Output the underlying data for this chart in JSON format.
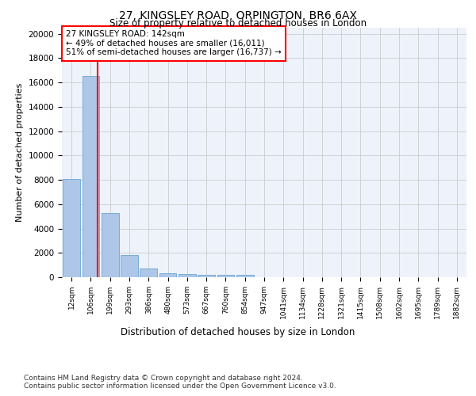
{
  "title1": "27, KINGSLEY ROAD, ORPINGTON, BR6 6AX",
  "title2": "Size of property relative to detached houses in London",
  "xlabel": "Distribution of detached houses by size in London",
  "ylabel": "Number of detached properties",
  "categories": [
    "12sqm",
    "106sqm",
    "199sqm",
    "293sqm",
    "386sqm",
    "480sqm",
    "573sqm",
    "667sqm",
    "760sqm",
    "854sqm",
    "947sqm",
    "1041sqm",
    "1134sqm",
    "1228sqm",
    "1321sqm",
    "1415sqm",
    "1508sqm",
    "1602sqm",
    "1695sqm",
    "1789sqm",
    "1882sqm"
  ],
  "values": [
    8100,
    16500,
    5300,
    1800,
    700,
    350,
    280,
    210,
    190,
    170,
    0,
    0,
    0,
    0,
    0,
    0,
    0,
    0,
    0,
    0,
    0
  ],
  "bar_color": "#aec6e8",
  "bar_edge_color": "#5599cc",
  "vline_x": 1.35,
  "vline_color": "red",
  "annotation_text": "27 KINGSLEY ROAD: 142sqm\n← 49% of detached houses are smaller (16,011)\n51% of semi-detached houses are larger (16,737) →",
  "annotation_box_color": "white",
  "annotation_box_edge": "red",
  "ylim": [
    0,
    20500
  ],
  "yticks": [
    0,
    2000,
    4000,
    6000,
    8000,
    10000,
    12000,
    14000,
    16000,
    18000,
    20000
  ],
  "footnote1": "Contains HM Land Registry data © Crown copyright and database right 2024.",
  "footnote2": "Contains public sector information licensed under the Open Government Licence v3.0.",
  "bg_color": "#eef2fb",
  "grid_color": "#cccccc"
}
